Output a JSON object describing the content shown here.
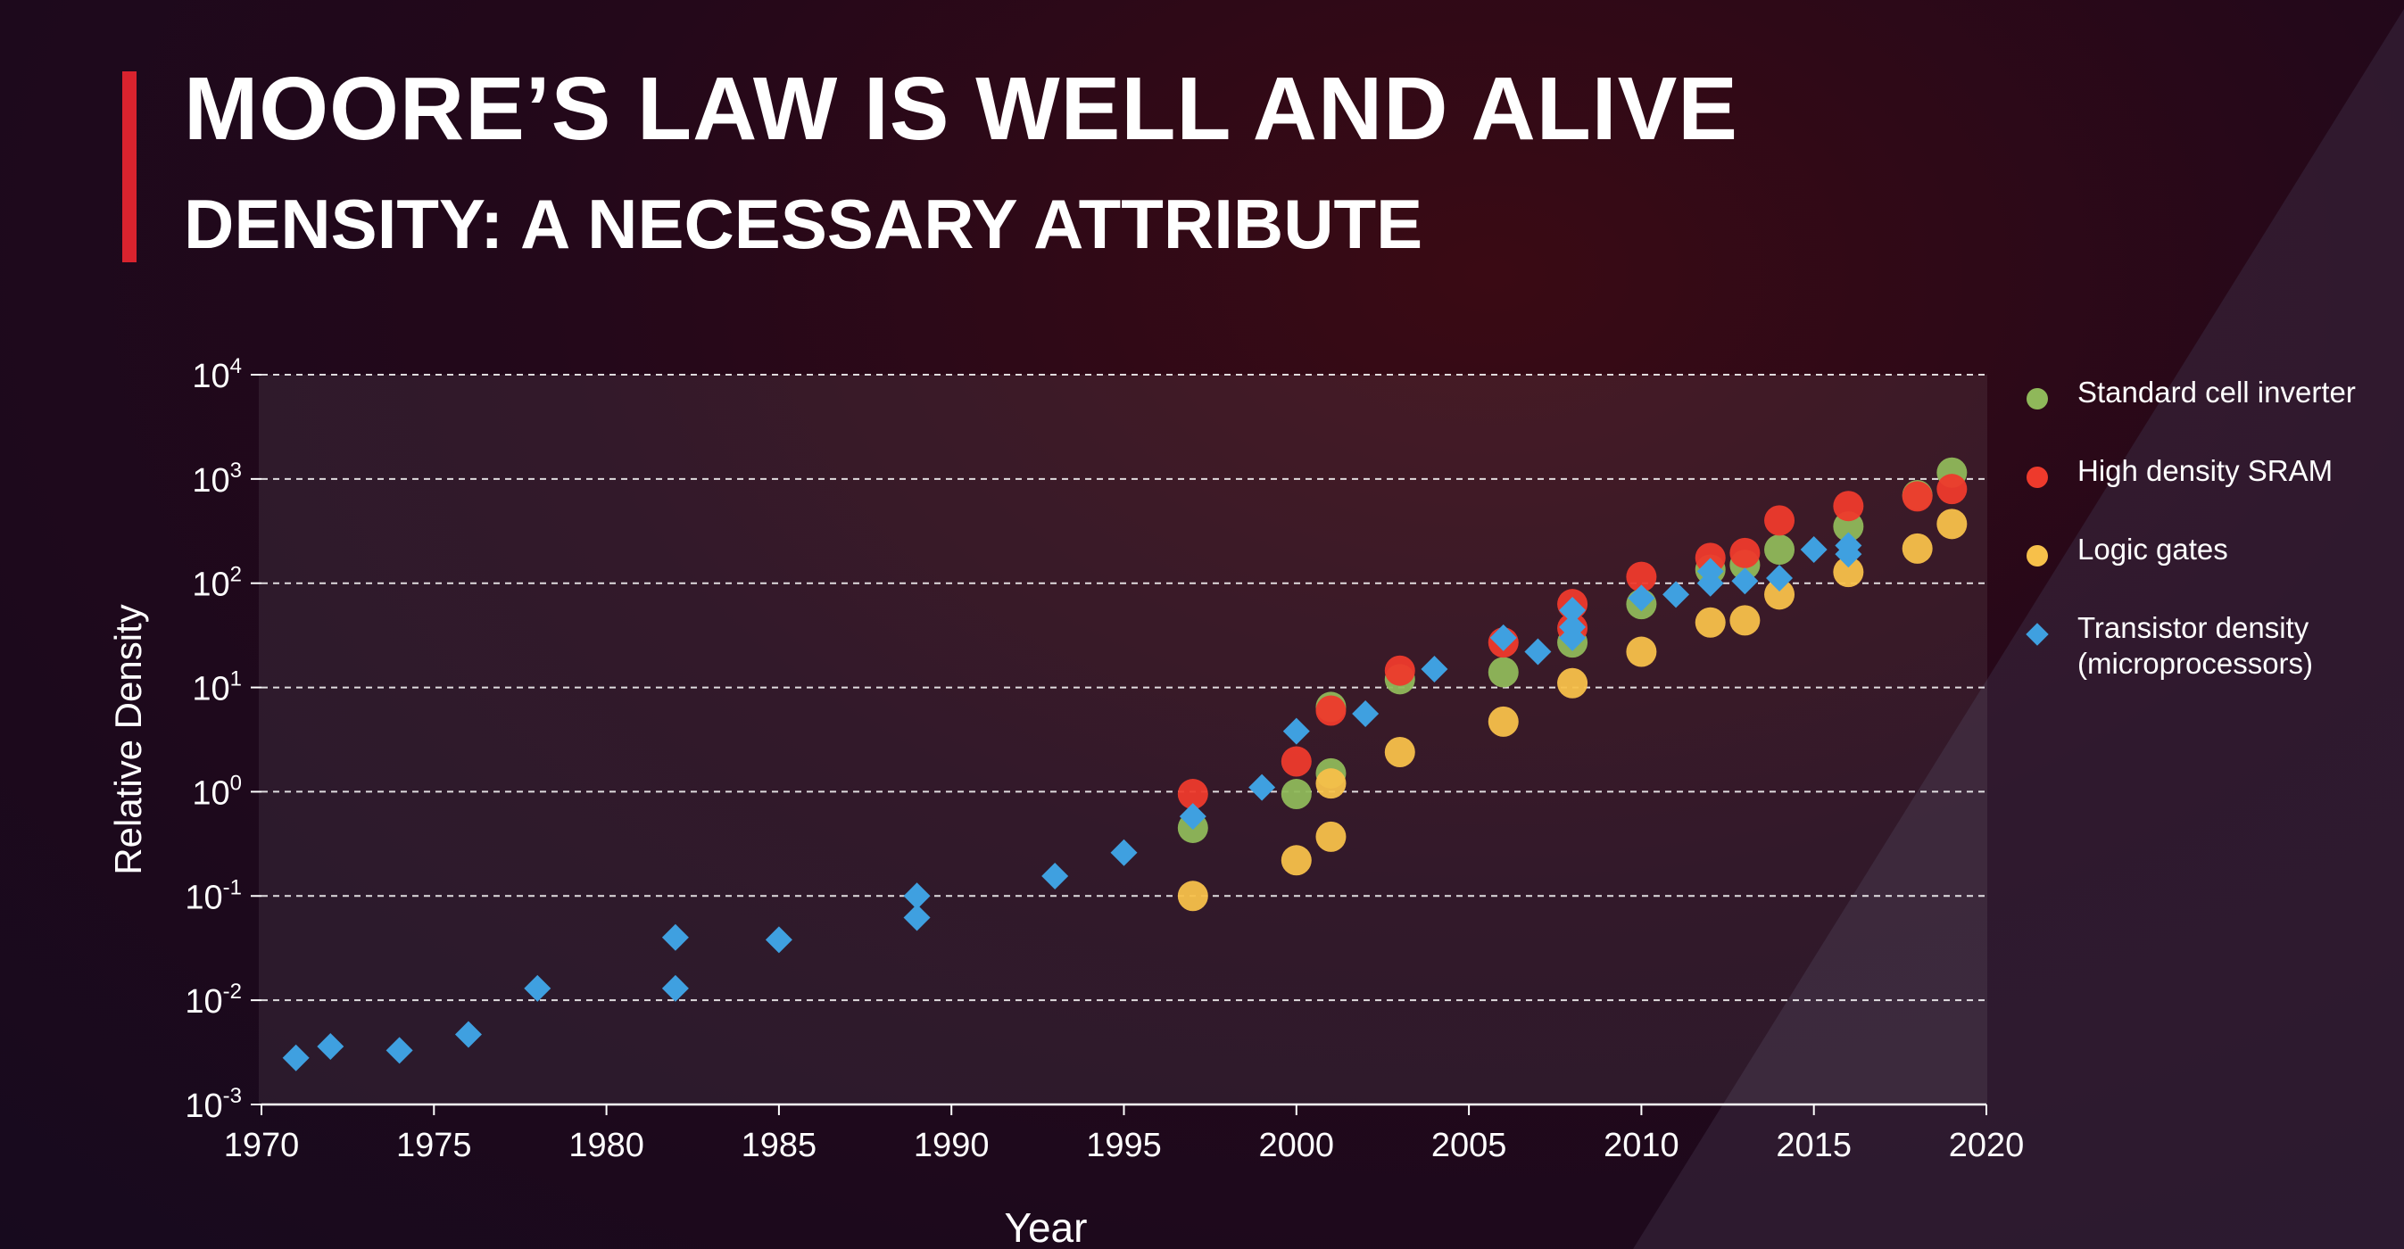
{
  "slide": {
    "title_emphasis": "MOORE’S LAW",
    "title_rest": " IS WELL AND ALIVE",
    "subtitle_emphasis": "DENSITY",
    "subtitle_rest": ": A NECESSARY ATTRIBUTE",
    "colors": {
      "accent": "#d9232e",
      "background": "#23081a",
      "text": "#ffffff"
    }
  },
  "chart_data": {
    "type": "scatter",
    "title": "",
    "xlabel": "Year",
    "ylabel": "Relative Density",
    "xlim": [
      1970,
      2020
    ],
    "x_ticks": [
      1970,
      1975,
      1980,
      1985,
      1990,
      1995,
      2000,
      2005,
      2010,
      2015,
      2020
    ],
    "y_scale": "log",
    "ylim": [
      0.001,
      10000
    ],
    "y_tick_exponents": [
      "-3",
      "-2",
      "-1",
      "0",
      "1",
      "2",
      "3",
      "4"
    ],
    "grid": "horizontal dashed",
    "legend_position": "right",
    "series": [
      {
        "name": "Standard cell inverter",
        "marker": "circle",
        "color": "#8fb85a",
        "points": [
          [
            1997,
            0.45
          ],
          [
            2000,
            0.95
          ],
          [
            2001,
            1.5
          ],
          [
            2001,
            6.5
          ],
          [
            2003,
            12
          ],
          [
            2006,
            14
          ],
          [
            2008,
            27
          ],
          [
            2010,
            63
          ],
          [
            2012,
            135
          ],
          [
            2013,
            150
          ],
          [
            2014,
            210
          ],
          [
            2016,
            350
          ],
          [
            2018,
            700
          ],
          [
            2019,
            1150
          ]
        ]
      },
      {
        "name": "High density SRAM",
        "marker": "circle",
        "color": "#ee3a2c",
        "points": [
          [
            1997,
            0.95
          ],
          [
            2000,
            1.95
          ],
          [
            2001,
            6
          ],
          [
            2003,
            14.5
          ],
          [
            2006,
            27
          ],
          [
            2008,
            37
          ],
          [
            2008,
            63
          ],
          [
            2010,
            115
          ],
          [
            2012,
            175
          ],
          [
            2013,
            195
          ],
          [
            2014,
            400
          ],
          [
            2016,
            550
          ],
          [
            2018,
            680
          ],
          [
            2019,
            800
          ]
        ]
      },
      {
        "name": "Logic gates",
        "marker": "circle",
        "color": "#f7c04a",
        "points": [
          [
            1997,
            0.1
          ],
          [
            2000,
            0.22
          ],
          [
            2001,
            0.37
          ],
          [
            2001,
            1.2
          ],
          [
            2003,
            2.4
          ],
          [
            2006,
            4.7
          ],
          [
            2008,
            11
          ],
          [
            2010,
            22
          ],
          [
            2012,
            42
          ],
          [
            2013,
            44
          ],
          [
            2014,
            78
          ],
          [
            2016,
            128
          ],
          [
            2018,
            215
          ],
          [
            2019,
            370
          ]
        ]
      },
      {
        "name": "Transistor density\n(microprocessors)",
        "marker": "diamond",
        "color": "#3fa0e0",
        "points": [
          [
            1971,
            0.0028
          ],
          [
            1972,
            0.0036
          ],
          [
            1974,
            0.0033
          ],
          [
            1976,
            0.0047
          ],
          [
            1978,
            0.013
          ],
          [
            1982,
            0.013
          ],
          [
            1982,
            0.04
          ],
          [
            1985,
            0.038
          ],
          [
            1989,
            0.1
          ],
          [
            1989,
            0.062
          ],
          [
            1993,
            0.155
          ],
          [
            1995,
            0.26
          ],
          [
            1997,
            0.58
          ],
          [
            1999,
            1.1
          ],
          [
            2000,
            3.8
          ],
          [
            2002,
            5.6
          ],
          [
            2004,
            15
          ],
          [
            2006,
            30
          ],
          [
            2007,
            22
          ],
          [
            2008,
            55
          ],
          [
            2008,
            38
          ],
          [
            2008,
            30
          ],
          [
            2010,
            72
          ],
          [
            2011,
            78
          ],
          [
            2012,
            100
          ],
          [
            2012,
            130
          ],
          [
            2013,
            105
          ],
          [
            2014,
            112
          ],
          [
            2015,
            210
          ],
          [
            2016,
            190
          ],
          [
            2016,
            230
          ]
        ]
      }
    ]
  }
}
